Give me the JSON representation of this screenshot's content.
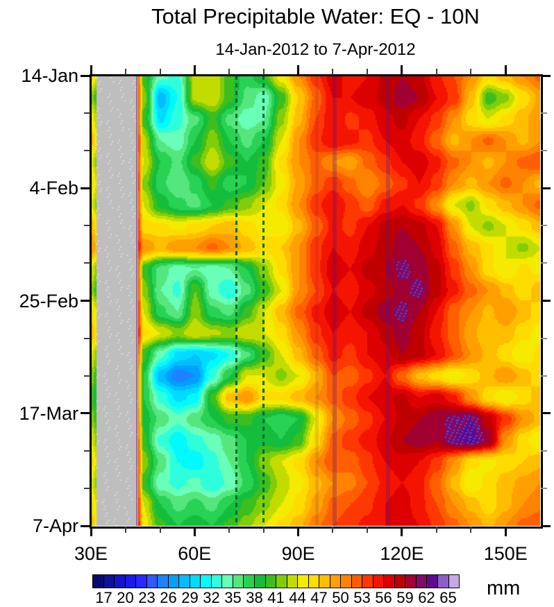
{
  "title": "Total Precipitable Water: EQ - 10N",
  "subtitle": "14-Jan-2012 to 7-Apr-2012",
  "colorbar": {
    "units": "mm",
    "min": 15.5,
    "max": 66.5,
    "step": 1.5,
    "tick_labels": [
      "17",
      "20",
      "23",
      "26",
      "29",
      "32",
      "35",
      "38",
      "41",
      "44",
      "47",
      "50",
      "53",
      "56",
      "59",
      "62",
      "65"
    ],
    "colors": [
      "#0A0A6E",
      "#10109B",
      "#1414C8",
      "#1C1CE8",
      "#2828FF",
      "#2E5AFF",
      "#1E82FF",
      "#00A0FF",
      "#00BEFF",
      "#00DCFF",
      "#00FAFF",
      "#2DFFDC",
      "#69FFB9",
      "#55E67D",
      "#28D255",
      "#14BE3C",
      "#3CBE1E",
      "#82CD0A",
      "#C3DC00",
      "#F5EB00",
      "#FFDC00",
      "#FFBE00",
      "#FFA000",
      "#FF8200",
      "#FF5F00",
      "#FF3700",
      "#F51400",
      "#DC0000",
      "#BE0000",
      "#A00032",
      "#820A64",
      "#5F0A8C",
      "#8C5FC8",
      "#C3AAE1"
    ],
    "over_color": "#EDE7F8",
    "missing_color": "#BEBEBE"
  },
  "x_axis": {
    "min": 30,
    "max": 160,
    "major_ticks": [
      30,
      60,
      90,
      120,
      150
    ],
    "major_labels": [
      "30E",
      "60E",
      "90E",
      "120E",
      "150E"
    ],
    "minor_ticks": [
      40,
      50,
      70,
      80,
      100,
      110,
      130,
      140
    ]
  },
  "y_axis": {
    "total_days": 84,
    "major_days": [
      0,
      21,
      42,
      63,
      84
    ],
    "major_labels": [
      "14-Jan",
      "4-Feb",
      "25-Feb",
      "17-Mar",
      "7-Apr"
    ],
    "minor_days": [
      7,
      14,
      28,
      35,
      49,
      56,
      70,
      77
    ]
  },
  "annotations": {
    "dashed_line_lons": [
      72,
      80
    ],
    "dashed_line_color": "#006432",
    "purple_streaks": [
      {
        "lon": 43.35,
        "opacity": 0.45,
        "width": 2
      },
      {
        "lon": 95.5,
        "opacity": 0.14,
        "width": 5
      },
      {
        "lon": 100.5,
        "opacity": 0.3,
        "width": 6
      },
      {
        "lon": 116.0,
        "opacity": 0.3,
        "width": 6
      }
    ],
    "streak_color_rgb": "90,20,130"
  },
  "chart_data": {
    "type": "heatmap",
    "xlabel_units": "degrees east",
    "value_units": "mm",
    "missing_lon_range": [
      32.5,
      42.5
    ],
    "lons": [
      30,
      31.5,
      32.5,
      42.5,
      43.5,
      45,
      50,
      55,
      60,
      65,
      70,
      75,
      80,
      85,
      90,
      95,
      100,
      105,
      110,
      115,
      120,
      125,
      130,
      135,
      140,
      145,
      150,
      155,
      160
    ],
    "dates": [
      "14-Jan",
      "18-Jan",
      "22-Jan",
      "26-Jan",
      "30-Jan",
      "3-Feb",
      "7-Feb",
      "11-Feb",
      "15-Feb",
      "19-Feb",
      "23-Feb",
      "27-Feb",
      "2-Mar",
      "6-Mar",
      "10-Mar",
      "14-Mar",
      "18-Mar",
      "22-Mar",
      "26-Mar",
      "30-Mar",
      "3-Apr",
      "7-Apr"
    ],
    "days": [
      0,
      4,
      8,
      12,
      16,
      20,
      24,
      28,
      32,
      36,
      40,
      44,
      48,
      52,
      56,
      60,
      64,
      68,
      72,
      76,
      80,
      84
    ],
    "grid": [
      [
        46,
        44,
        null,
        null,
        52,
        40,
        34,
        33,
        43,
        44,
        40,
        37,
        40,
        45,
        50,
        54,
        57,
        55,
        56,
        58,
        59,
        58,
        55,
        53,
        50,
        46,
        48,
        50,
        52
      ],
      [
        42,
        40,
        null,
        null,
        53,
        42,
        28,
        32,
        43,
        44,
        40,
        36,
        34,
        40,
        47,
        52,
        56,
        56,
        57,
        58,
        60,
        59,
        56,
        54,
        48,
        40,
        42,
        46,
        49
      ],
      [
        45,
        43,
        null,
        null,
        52,
        40,
        30,
        33,
        36,
        40,
        36,
        34,
        35,
        42,
        48,
        53,
        56,
        54,
        55,
        57,
        58,
        56,
        54,
        50,
        46,
        44,
        46,
        48,
        50
      ],
      [
        48,
        45,
        null,
        null,
        54,
        43,
        35,
        34,
        38,
        42,
        38,
        36,
        38,
        44,
        50,
        54,
        56,
        55,
        54,
        56,
        57,
        55,
        52,
        48,
        50,
        52,
        50,
        48,
        50
      ],
      [
        44,
        42,
        null,
        null,
        53,
        44,
        38,
        36,
        40,
        44,
        40,
        38,
        40,
        46,
        50,
        52,
        50,
        49,
        52,
        54,
        56,
        57,
        55,
        52,
        50,
        48,
        50,
        52,
        53
      ],
      [
        46,
        44,
        null,
        null,
        54,
        42,
        37,
        35,
        37,
        40,
        37,
        38,
        41,
        45,
        49,
        52,
        54,
        52,
        50,
        52,
        54,
        56,
        54,
        50,
        48,
        50,
        52,
        50,
        48
      ],
      [
        44,
        42,
        null,
        null,
        52,
        44,
        39,
        37,
        36,
        38,
        40,
        42,
        44,
        46,
        50,
        54,
        56,
        54,
        52,
        55,
        56,
        54,
        50,
        44,
        42,
        46,
        48,
        50,
        52
      ],
      [
        48,
        46,
        null,
        null,
        54,
        46,
        46,
        45,
        46,
        47,
        48,
        46,
        45,
        44,
        48,
        52,
        55,
        54,
        56,
        58,
        59,
        58,
        56,
        50,
        44,
        42,
        44,
        46,
        48
      ],
      [
        50,
        48,
        null,
        null,
        55,
        50,
        48,
        50,
        50,
        52,
        50,
        48,
        46,
        47,
        50,
        54,
        56,
        55,
        57,
        58,
        60,
        59,
        57,
        52,
        48,
        46,
        44,
        42,
        44
      ],
      [
        44,
        42,
        null,
        null,
        52,
        40,
        36,
        34,
        35,
        34,
        35,
        38,
        42,
        46,
        50,
        54,
        57,
        56,
        58,
        59,
        61,
        60,
        58,
        54,
        50,
        46,
        44,
        46,
        45
      ],
      [
        42,
        40,
        null,
        null,
        53,
        42,
        35,
        33,
        41,
        34,
        32,
        36,
        40,
        44,
        50,
        53,
        56,
        55,
        57,
        58,
        60,
        61,
        58,
        55,
        52,
        50,
        48,
        46,
        48
      ],
      [
        46,
        44,
        null,
        null,
        54,
        44,
        37,
        35,
        42,
        37,
        36,
        40,
        44,
        48,
        52,
        55,
        57,
        56,
        58,
        60,
        61,
        59,
        56,
        52,
        50,
        48,
        50,
        48,
        46
      ],
      [
        48,
        46,
        null,
        null,
        55,
        46,
        44,
        42,
        44,
        43,
        42,
        44,
        44,
        46,
        50,
        54,
        56,
        55,
        56,
        58,
        60,
        58,
        55,
        52,
        49,
        47,
        48,
        46,
        45
      ],
      [
        44,
        42,
        null,
        null,
        52,
        40,
        34,
        30,
        29,
        30,
        32,
        36,
        40,
        44,
        48,
        52,
        55,
        54,
        56,
        57,
        59,
        58,
        56,
        53,
        50,
        48,
        46,
        44,
        46
      ],
      [
        42,
        40,
        null,
        null,
        50,
        38,
        28,
        25,
        26,
        33,
        38,
        44,
        44,
        42,
        44,
        48,
        53,
        52,
        54,
        56,
        52,
        48,
        46,
        44,
        46,
        48,
        50,
        48,
        46
      ],
      [
        40,
        38,
        null,
        null,
        50,
        38,
        33,
        30,
        31,
        40,
        48,
        50,
        46,
        46,
        48,
        50,
        52,
        54,
        56,
        57,
        58,
        56,
        57,
        55,
        50,
        46,
        44,
        46,
        48
      ],
      [
        42,
        40,
        null,
        null,
        51,
        39,
        36,
        34,
        36,
        38,
        40,
        40,
        38,
        37,
        38,
        44,
        50,
        52,
        54,
        56,
        58,
        59,
        60,
        61,
        62,
        58,
        54,
        50,
        48
      ],
      [
        44,
        42,
        null,
        null,
        52,
        40,
        33,
        31,
        33,
        34,
        36,
        38,
        39,
        38,
        40,
        46,
        52,
        54,
        55,
        57,
        59,
        60,
        59,
        62,
        63,
        60,
        50,
        46,
        44
      ],
      [
        46,
        44,
        null,
        null,
        53,
        42,
        36,
        32,
        31,
        33,
        35,
        38,
        42,
        44,
        46,
        50,
        53,
        52,
        54,
        56,
        57,
        56,
        54,
        50,
        46,
        45,
        46,
        47,
        48
      ],
      [
        44,
        42,
        null,
        null,
        52,
        40,
        34,
        33,
        34,
        32,
        34,
        37,
        40,
        43,
        45,
        48,
        50,
        51,
        53,
        55,
        56,
        55,
        52,
        48,
        44,
        46,
        48,
        49,
        50
      ],
      [
        46,
        44,
        null,
        null,
        54,
        44,
        38,
        36,
        37,
        36,
        38,
        40,
        42,
        44,
        46,
        49,
        52,
        53,
        54,
        56,
        57,
        55,
        53,
        50,
        48,
        46,
        48,
        50,
        51
      ],
      [
        48,
        45,
        null,
        null,
        55,
        45,
        40,
        38,
        39,
        38,
        40,
        42,
        44,
        46,
        48,
        51,
        53,
        54,
        55,
        56,
        57,
        56,
        54,
        52,
        50,
        48,
        50,
        52,
        53
      ]
    ]
  }
}
